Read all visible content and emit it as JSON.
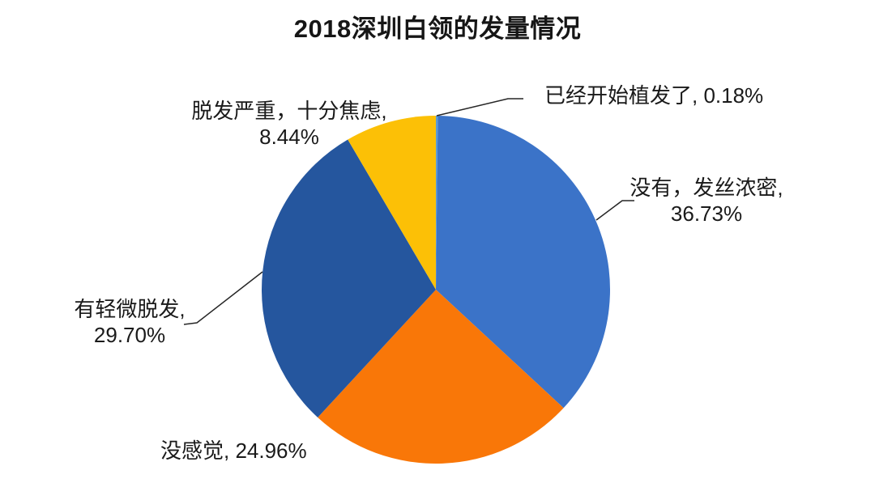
{
  "title": "2018深圳白领的发量情况",
  "chart_data": {
    "type": "pie",
    "title": "2018深圳白领的发量情况",
    "direction": "clockwise",
    "start_angle": "12-oclock",
    "unit": "%",
    "legend": "none",
    "labels_outside": true,
    "categories": [
      "已经开始植发了",
      "没有，发丝浓密",
      "没感觉",
      "有轻微脱发",
      "脱发严重，十分焦虑"
    ],
    "values": [
      0.18,
      36.73,
      24.96,
      29.7,
      8.44
    ],
    "colors": [
      "#5B9BD5",
      "#3B73C8",
      "#F97708",
      "#25569E",
      "#FCC006"
    ]
  },
  "labels": {
    "transplant": {
      "text": "已经开始植发了, 0.18%"
    },
    "thick": {
      "line1": "没有，发丝浓密,",
      "line2": "36.73%"
    },
    "nofeel": {
      "text": "没感觉, 24.96%"
    },
    "slight": {
      "line1": "有轻微脱发,",
      "line2": "29.70%"
    },
    "severe": {
      "line1": "脱发严重，十分焦虑,",
      "line2": "8.44%"
    }
  },
  "leader_line_color": "#262626",
  "background_color": "#FFFFFF"
}
